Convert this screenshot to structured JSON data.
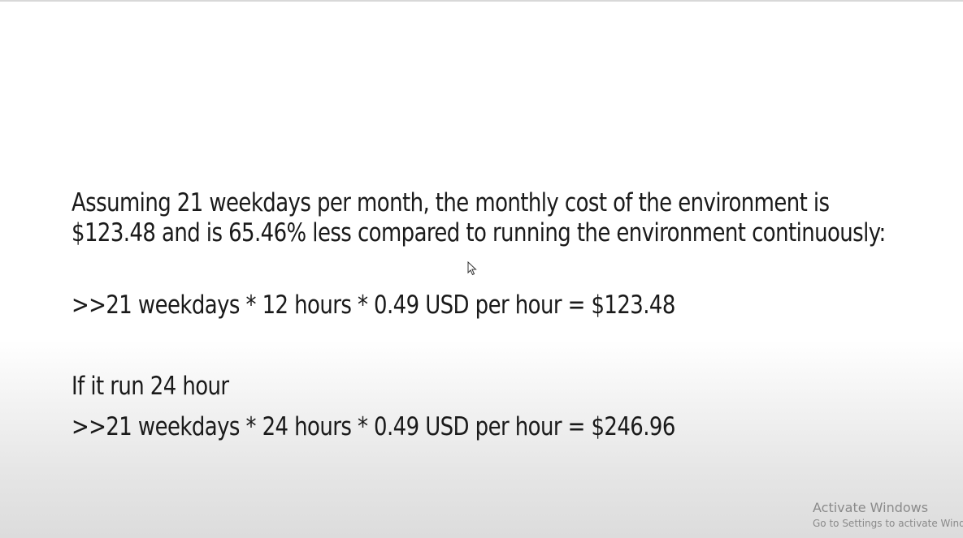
{
  "slide": {
    "paragraph": "Assuming 21 weekdays per month, the monthly cost of the environment is $123.48 and is 65.46% less compared to running the environment continuously:",
    "calc_12h": ">>21 weekdays * 12 hours * 0.49 USD per hour = $123.48",
    "heading_24h": "If it run 24 hour",
    "calc_24h": ">>21 weekdays * 24 hours * 0.49 USD per hour = $246.96"
  },
  "watermark": {
    "title": "Activate Windows",
    "subtitle": "Go to Settings to activate Windows."
  },
  "icons": {
    "cursor": "mouse-pointer-icon"
  }
}
